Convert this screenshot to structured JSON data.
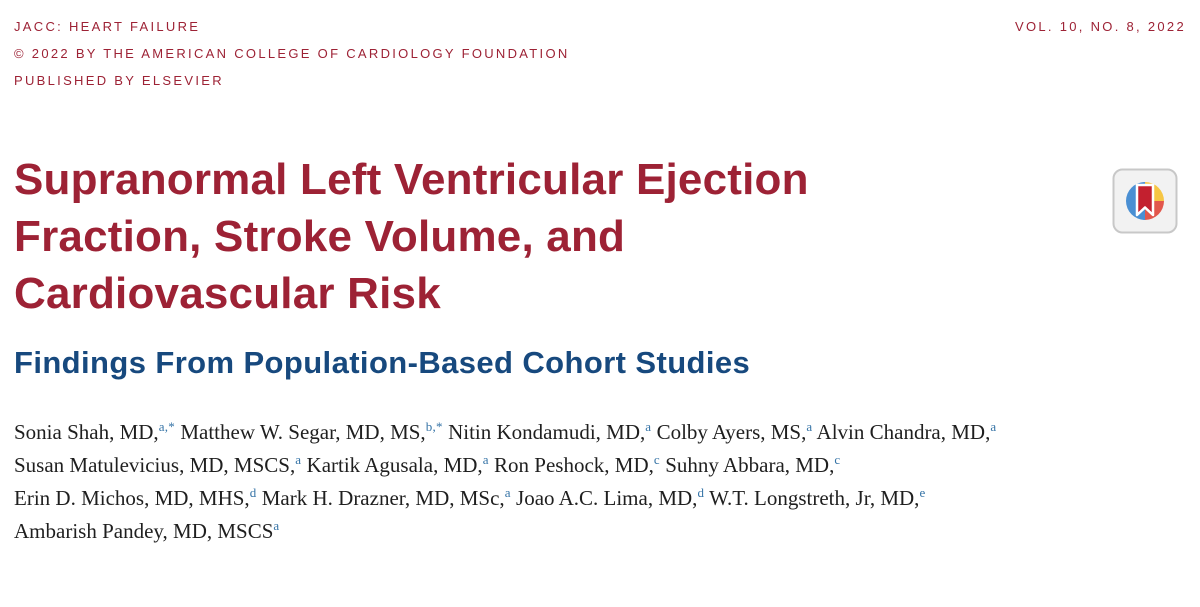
{
  "header": {
    "journal": "JACC: HEART FAILURE",
    "copyright": "© 2022 BY THE AMERICAN COLLEGE OF CARDIOLOGY FOUNDATION",
    "publisher": "PUBLISHED BY ELSEVIER",
    "volume": "VOL. 10, NO. 8, 2022"
  },
  "article": {
    "title_lines": [
      "Supranormal Left Ventricular Ejection",
      "Fraction, Stroke Volume, and",
      "Cardiovascular Risk"
    ],
    "subtitle": "Findings From Population-Based Cohort Studies"
  },
  "authors": {
    "lines": [
      [
        {
          "t": "Sonia Shah, MD,",
          "s": "a,*"
        },
        {
          "t": "Matthew W. Segar, MD, MS,",
          "s": "b,*"
        },
        {
          "t": "Nitin Kondamudi, MD,",
          "s": "a"
        },
        {
          "t": "Colby Ayers, MS,",
          "s": "a"
        },
        {
          "t": "Alvin Chandra, MD,",
          "s": "a"
        }
      ],
      [
        {
          "t": "Susan Matulevicius, MD, MSCS,",
          "s": "a"
        },
        {
          "t": "Kartik Agusala, MD,",
          "s": "a"
        },
        {
          "t": "Ron Peshock, MD,",
          "s": "c"
        },
        {
          "t": "Suhny Abbara, MD,",
          "s": "c"
        }
      ],
      [
        {
          "t": "Erin D. Michos, MD, MHS,",
          "s": "d"
        },
        {
          "t": "Mark H. Drazner, MD, MSc,",
          "s": "a"
        },
        {
          "t": "Joao A.C. Lima, MD,",
          "s": "d"
        },
        {
          "t": "W.T. Longstreth, Jr, MD,",
          "s": "e"
        }
      ],
      [
        {
          "t": "Ambarish Pandey, MD, MSCS",
          "s": "a"
        }
      ]
    ]
  },
  "icons": {
    "crossmark": "crossmark-update-badge"
  },
  "colors": {
    "journal_red": "#9d2235",
    "subtitle_navy": "#17497e",
    "affil_blue": "#3573a6",
    "author_ink": "#1f1f1f",
    "page_bg": "#ffffff"
  }
}
